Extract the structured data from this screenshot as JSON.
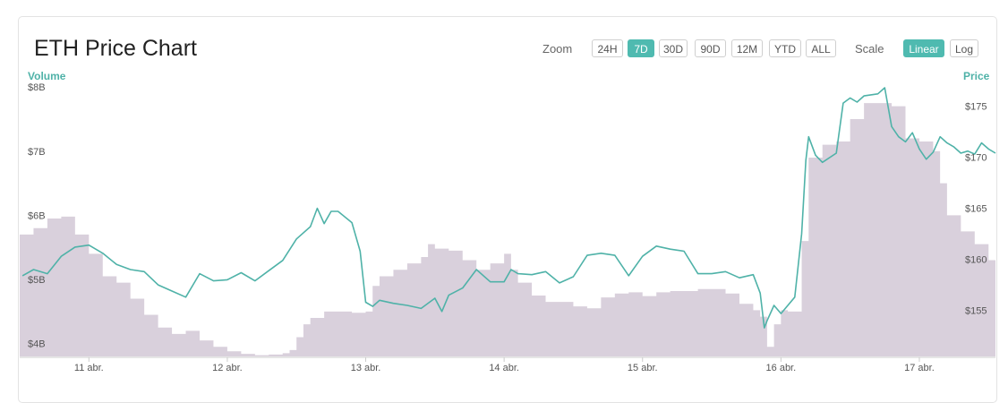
{
  "title": "ETH Price Chart",
  "zoom": {
    "label": "Zoom",
    "options": [
      "24H",
      "7D",
      "30D",
      "90D",
      "12M",
      "YTD",
      "ALL"
    ],
    "selected": "7D"
  },
  "scale": {
    "label": "Scale",
    "options": [
      "Linear",
      "Log"
    ],
    "selected": "Linear"
  },
  "colors": {
    "price_line": "#4fb2a8",
    "volume_area": "#d9d0dc",
    "accent": "#4fbab0"
  },
  "chart_data": {
    "type": "line",
    "title": "ETH Price Chart",
    "x_tick_labels": [
      "11 abr.",
      "12 abr.",
      "13 abr.",
      "14 abr.",
      "15 abr.",
      "16 abr.",
      "17 abr."
    ],
    "x_range_days": [
      10.5,
      17.55
    ],
    "left_axis": {
      "label": "Volume",
      "ticks": [
        "$4B",
        "$5B",
        "$6B",
        "$7B",
        "$8B"
      ],
      "ylim_billions": [
        3.8,
        8.1
      ]
    },
    "right_axis": {
      "label": "Price",
      "ticks": [
        "$155",
        "$160",
        "$165",
        "$170",
        "$175"
      ],
      "ylim": [
        150.5,
        177.5
      ]
    },
    "grid": false,
    "series": [
      {
        "name": "Price",
        "kind": "line",
        "axis": "right",
        "points": [
          [
            10.52,
            158.4
          ],
          [
            10.6,
            159.0
          ],
          [
            10.7,
            158.6
          ],
          [
            10.8,
            160.3
          ],
          [
            10.9,
            161.2
          ],
          [
            11.0,
            161.4
          ],
          [
            11.1,
            160.6
          ],
          [
            11.2,
            159.5
          ],
          [
            11.3,
            159.0
          ],
          [
            11.4,
            158.8
          ],
          [
            11.5,
            157.5
          ],
          [
            11.6,
            156.9
          ],
          [
            11.7,
            156.3
          ],
          [
            11.8,
            158.6
          ],
          [
            11.9,
            157.9
          ],
          [
            12.0,
            158.0
          ],
          [
            12.1,
            158.7
          ],
          [
            12.2,
            157.9
          ],
          [
            12.3,
            158.9
          ],
          [
            12.4,
            159.9
          ],
          [
            12.5,
            162.0
          ],
          [
            12.6,
            163.2
          ],
          [
            12.65,
            165.0
          ],
          [
            12.7,
            163.5
          ],
          [
            12.75,
            164.7
          ],
          [
            12.8,
            164.7
          ],
          [
            12.9,
            163.6
          ],
          [
            12.96,
            160.8
          ],
          [
            13.0,
            155.8
          ],
          [
            13.05,
            155.4
          ],
          [
            13.1,
            156.0
          ],
          [
            13.2,
            155.7
          ],
          [
            13.3,
            155.5
          ],
          [
            13.4,
            155.2
          ],
          [
            13.5,
            156.2
          ],
          [
            13.55,
            154.9
          ],
          [
            13.6,
            156.5
          ],
          [
            13.7,
            157.2
          ],
          [
            13.8,
            159.0
          ],
          [
            13.9,
            157.8
          ],
          [
            14.0,
            157.8
          ],
          [
            14.05,
            159.0
          ],
          [
            14.1,
            158.6
          ],
          [
            14.2,
            158.5
          ],
          [
            14.3,
            158.8
          ],
          [
            14.4,
            157.7
          ],
          [
            14.5,
            158.3
          ],
          [
            14.6,
            160.4
          ],
          [
            14.7,
            160.6
          ],
          [
            14.8,
            160.4
          ],
          [
            14.9,
            158.4
          ],
          [
            15.0,
            160.3
          ],
          [
            15.1,
            161.3
          ],
          [
            15.2,
            161.0
          ],
          [
            15.3,
            160.8
          ],
          [
            15.4,
            158.6
          ],
          [
            15.5,
            158.6
          ],
          [
            15.6,
            158.8
          ],
          [
            15.7,
            158.2
          ],
          [
            15.8,
            158.5
          ],
          [
            15.85,
            156.7
          ],
          [
            15.88,
            153.3
          ],
          [
            15.9,
            154.0
          ],
          [
            15.95,
            155.5
          ],
          [
            16.0,
            154.7
          ],
          [
            16.1,
            156.3
          ],
          [
            16.15,
            162.5
          ],
          [
            16.18,
            169.7
          ],
          [
            16.2,
            172.0
          ],
          [
            16.25,
            170.2
          ],
          [
            16.3,
            169.5
          ],
          [
            16.4,
            170.4
          ],
          [
            16.45,
            175.3
          ],
          [
            16.5,
            175.8
          ],
          [
            16.55,
            175.4
          ],
          [
            16.6,
            176.0
          ],
          [
            16.7,
            176.2
          ],
          [
            16.75,
            176.8
          ],
          [
            16.8,
            173.0
          ],
          [
            16.85,
            172.0
          ],
          [
            16.9,
            171.5
          ],
          [
            16.95,
            172.4
          ],
          [
            17.0,
            170.8
          ],
          [
            17.05,
            169.8
          ],
          [
            17.1,
            170.5
          ],
          [
            17.15,
            172.0
          ],
          [
            17.2,
            171.4
          ],
          [
            17.25,
            171.0
          ],
          [
            17.3,
            170.4
          ],
          [
            17.35,
            170.6
          ],
          [
            17.4,
            170.3
          ],
          [
            17.45,
            171.4
          ],
          [
            17.5,
            170.8
          ],
          [
            17.55,
            170.4
          ]
        ]
      },
      {
        "name": "Volume",
        "kind": "area",
        "axis": "left",
        "points": [
          [
            10.5,
            5.7
          ],
          [
            10.6,
            5.8
          ],
          [
            10.7,
            5.95
          ],
          [
            10.8,
            5.98
          ],
          [
            10.9,
            5.7
          ],
          [
            11.0,
            5.4
          ],
          [
            11.1,
            5.05
          ],
          [
            11.2,
            4.95
          ],
          [
            11.3,
            4.7
          ],
          [
            11.4,
            4.45
          ],
          [
            11.5,
            4.25
          ],
          [
            11.6,
            4.15
          ],
          [
            11.7,
            4.2
          ],
          [
            11.8,
            4.05
          ],
          [
            11.9,
            3.95
          ],
          [
            12.0,
            3.88
          ],
          [
            12.1,
            3.84
          ],
          [
            12.2,
            3.82
          ],
          [
            12.3,
            3.83
          ],
          [
            12.4,
            3.85
          ],
          [
            12.45,
            3.9
          ],
          [
            12.5,
            4.1
          ],
          [
            12.55,
            4.3
          ],
          [
            12.6,
            4.4
          ],
          [
            12.7,
            4.5
          ],
          [
            12.8,
            4.5
          ],
          [
            12.9,
            4.48
          ],
          [
            13.0,
            4.5
          ],
          [
            13.05,
            4.9
          ],
          [
            13.1,
            5.05
          ],
          [
            13.2,
            5.15
          ],
          [
            13.3,
            5.25
          ],
          [
            13.4,
            5.35
          ],
          [
            13.45,
            5.55
          ],
          [
            13.5,
            5.48
          ],
          [
            13.6,
            5.45
          ],
          [
            13.7,
            5.3
          ],
          [
            13.8,
            5.15
          ],
          [
            13.9,
            5.25
          ],
          [
            14.0,
            5.4
          ],
          [
            14.05,
            5.15
          ],
          [
            14.1,
            4.95
          ],
          [
            14.2,
            4.75
          ],
          [
            14.3,
            4.65
          ],
          [
            14.4,
            4.65
          ],
          [
            14.5,
            4.58
          ],
          [
            14.6,
            4.55
          ],
          [
            14.7,
            4.72
          ],
          [
            14.8,
            4.78
          ],
          [
            14.9,
            4.8
          ],
          [
            15.0,
            4.74
          ],
          [
            15.1,
            4.8
          ],
          [
            15.2,
            4.82
          ],
          [
            15.3,
            4.82
          ],
          [
            15.4,
            4.85
          ],
          [
            15.5,
            4.85
          ],
          [
            15.6,
            4.78
          ],
          [
            15.7,
            4.62
          ],
          [
            15.8,
            4.52
          ],
          [
            15.85,
            4.42
          ],
          [
            15.9,
            3.95
          ],
          [
            15.95,
            4.3
          ],
          [
            16.0,
            4.52
          ],
          [
            16.05,
            4.5
          ],
          [
            16.1,
            4.5
          ],
          [
            16.15,
            5.6
          ],
          [
            16.2,
            6.9
          ],
          [
            16.3,
            7.1
          ],
          [
            16.4,
            7.15
          ],
          [
            16.5,
            7.5
          ],
          [
            16.6,
            7.75
          ],
          [
            16.7,
            7.75
          ],
          [
            16.8,
            7.7
          ],
          [
            16.9,
            7.2
          ],
          [
            17.0,
            7.15
          ],
          [
            17.1,
            7.0
          ],
          [
            17.15,
            6.5
          ],
          [
            17.2,
            6.0
          ],
          [
            17.3,
            5.75
          ],
          [
            17.4,
            5.55
          ],
          [
            17.5,
            5.3
          ],
          [
            17.55,
            5.1
          ]
        ]
      }
    ]
  }
}
